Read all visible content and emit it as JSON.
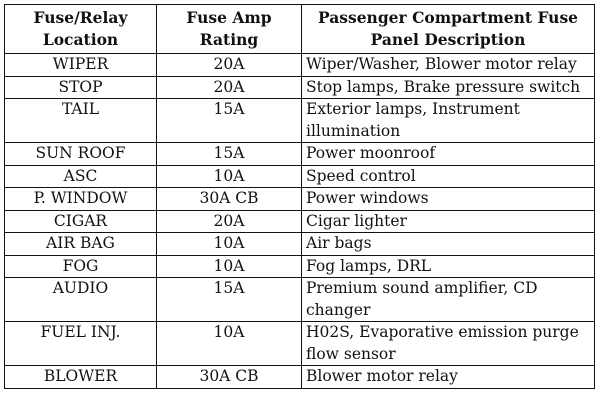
{
  "table": {
    "headers": [
      "Fuse/Relay Location",
      "Fuse Amp Rating",
      "Passenger Compartment Fuse Panel Description"
    ],
    "rows": [
      {
        "location": "WIPER",
        "rating": "20A",
        "description": "Wiper/Washer, Blower motor relay"
      },
      {
        "location": "STOP",
        "rating": "20A",
        "description": "Stop lamps, Brake pressure switch"
      },
      {
        "location": "TAIL",
        "rating": "15A",
        "description": "Exterior lamps, Instrument illumination"
      },
      {
        "location": "SUN ROOF",
        "rating": "15A",
        "description": "Power moonroof"
      },
      {
        "location": "ASC",
        "rating": "10A",
        "description": "Speed control"
      },
      {
        "location": "P. WINDOW",
        "rating": "30A CB",
        "description": "Power windows"
      },
      {
        "location": "CIGAR",
        "rating": "20A",
        "description": "Cigar lighter"
      },
      {
        "location": "AIR BAG",
        "rating": "10A",
        "description": "Air bags"
      },
      {
        "location": "FOG",
        "rating": "10A",
        "description": "Fog lamps, DRL"
      },
      {
        "location": "AUDIO",
        "rating": "15A",
        "description": "Premium sound amplifier, CD changer"
      },
      {
        "location": "FUEL INJ.",
        "rating": "10A",
        "description": "H02S, Evaporative emission purge flow sensor"
      },
      {
        "location": "BLOWER",
        "rating": "30A CB",
        "description": "Blower motor relay"
      }
    ]
  }
}
